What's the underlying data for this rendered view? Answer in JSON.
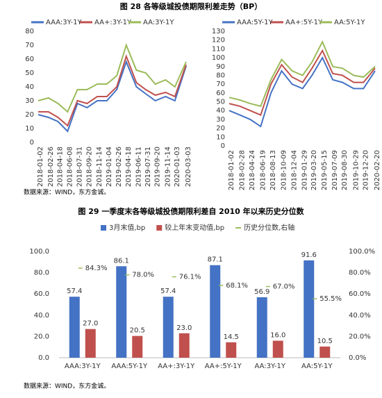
{
  "captions": [
    "图 28   各等级城投债期限利差走势（BP）",
    "图 29   一季度末各等级城投债期限利差自 2010 年以来历史分位数"
  ],
  "sources": [
    "数据来源：WIND，东方金诚。",
    "数据来源：WIND，东方金诚。"
  ],
  "chart_data": [
    {
      "type": "line",
      "x": [
        "2018-01-02",
        "2018-02-26",
        "2018-04-18",
        "2018-06-08",
        "2018-07-31",
        "2018-09-20",
        "2018-11-14",
        "2019-01-04",
        "2019-02-26",
        "2019-04-18",
        "2019-06-11",
        "2019-07-31",
        "2019-09-20",
        "2019-11-14",
        "2020-01-03",
        "2020-03-03"
      ],
      "series": [
        {
          "name": "AAA:3Y-1Y",
          "color": "#4472c4",
          "values": [
            20,
            18,
            15,
            8,
            28,
            25,
            30,
            30,
            38,
            58,
            40,
            35,
            30,
            33,
            30,
            55
          ]
        },
        {
          "name": "AA+:3Y-1Y",
          "color": "#c0504d",
          "values": [
            22,
            22,
            18,
            12,
            30,
            28,
            33,
            33,
            40,
            62,
            43,
            38,
            34,
            36,
            33,
            56
          ]
        },
        {
          "name": "AA:3Y-1Y",
          "color": "#9bbb59",
          "values": [
            30,
            32,
            28,
            22,
            38,
            38,
            42,
            42,
            48,
            70,
            52,
            50,
            42,
            45,
            40,
            58
          ]
        }
      ],
      "ylim": [
        0,
        80
      ],
      "yticks": [
        0,
        10,
        20,
        30,
        40,
        50,
        60,
        70,
        80
      ],
      "grid": false
    },
    {
      "type": "line",
      "x": [
        "2018-01-02",
        "2018-02-28",
        "2018-04-24",
        "2018-06-19",
        "2018-08-13",
        "2018-10-09",
        "2018-12-04",
        "2019-01-29",
        "2019-03-20",
        "2019-05-15",
        "2019-07-09",
        "2019-08-30",
        "2019-10-29",
        "2019-12-20",
        "2020-02-20"
      ],
      "series": [
        {
          "name": "AAA:5Y-1Y",
          "color": "#4472c4",
          "values": [
            40,
            35,
            30,
            22,
            60,
            85,
            70,
            65,
            80,
            100,
            75,
            72,
            65,
            65,
            85
          ]
        },
        {
          "name": "AA+:5Y-1Y",
          "color": "#c0504d",
          "values": [
            48,
            45,
            40,
            35,
            70,
            92,
            78,
            72,
            88,
            108,
            82,
            80,
            72,
            72,
            88
          ]
        },
        {
          "name": "AA:5Y-1Y",
          "color": "#9bbb59",
          "values": [
            55,
            52,
            48,
            45,
            75,
            98,
            85,
            80,
            95,
            118,
            90,
            88,
            80,
            78,
            90
          ]
        }
      ],
      "ylim": [
        0,
        130
      ],
      "yticks": [
        0,
        10,
        20,
        30,
        40,
        50,
        60,
        70,
        80,
        90,
        100,
        110,
        120,
        130
      ],
      "grid": false
    },
    {
      "type": "bar",
      "categories": [
        "AAA:3Y-1Y",
        "AAA:5Y-1Y",
        "AA+:3Y-1Y",
        "AA+:5Y-1Y",
        "AA:3Y-1Y",
        "AA:5Y-1Y"
      ],
      "series": [
        {
          "name": "3月末值,bp",
          "color": "#4472c4",
          "values": [
            57.4,
            86.1,
            57.4,
            87.1,
            56.9,
            91.6
          ]
        },
        {
          "name": "较上年末变动值,bp",
          "color": "#c0504d",
          "values": [
            27,
            20.5,
            23,
            14.5,
            16,
            10.5
          ],
          "value_labels": [
            "27.0",
            "20.5",
            "23.0",
            "14.5",
            "16.0",
            "10.5"
          ]
        },
        {
          "name": "历史分位数,右轴",
          "color": "#9bbb59",
          "axis": "y2",
          "marker": "dash",
          "values": [
            84.3,
            78,
            76.1,
            68.1,
            67,
            55.5
          ],
          "value_labels": [
            "84.3%",
            "78.0%",
            "76.1%",
            "68.1%",
            "67.0%",
            "55.5%"
          ]
        }
      ],
      "ylim": [
        0,
        100
      ],
      "yticks": [
        {
          "value": 0,
          "label": "0.0"
        },
        {
          "value": 20,
          "label": "20.0"
        },
        {
          "value": 40,
          "label": "40.0"
        },
        {
          "value": 60,
          "label": "60.0"
        },
        {
          "value": 80,
          "label": "80.0"
        },
        {
          "value": 100,
          "label": "100.0"
        }
      ],
      "y2lim": [
        0,
        100
      ],
      "y2ticks": [
        {
          "value": 0,
          "label": "0.0%"
        },
        {
          "value": 20,
          "label": "20.0%"
        },
        {
          "value": 40,
          "label": "40.0%"
        },
        {
          "value": 60,
          "label": "60.0%"
        },
        {
          "value": 80,
          "label": "80.0%"
        },
        {
          "value": 100,
          "label": "100.0%"
        }
      ],
      "grid": false
    }
  ]
}
